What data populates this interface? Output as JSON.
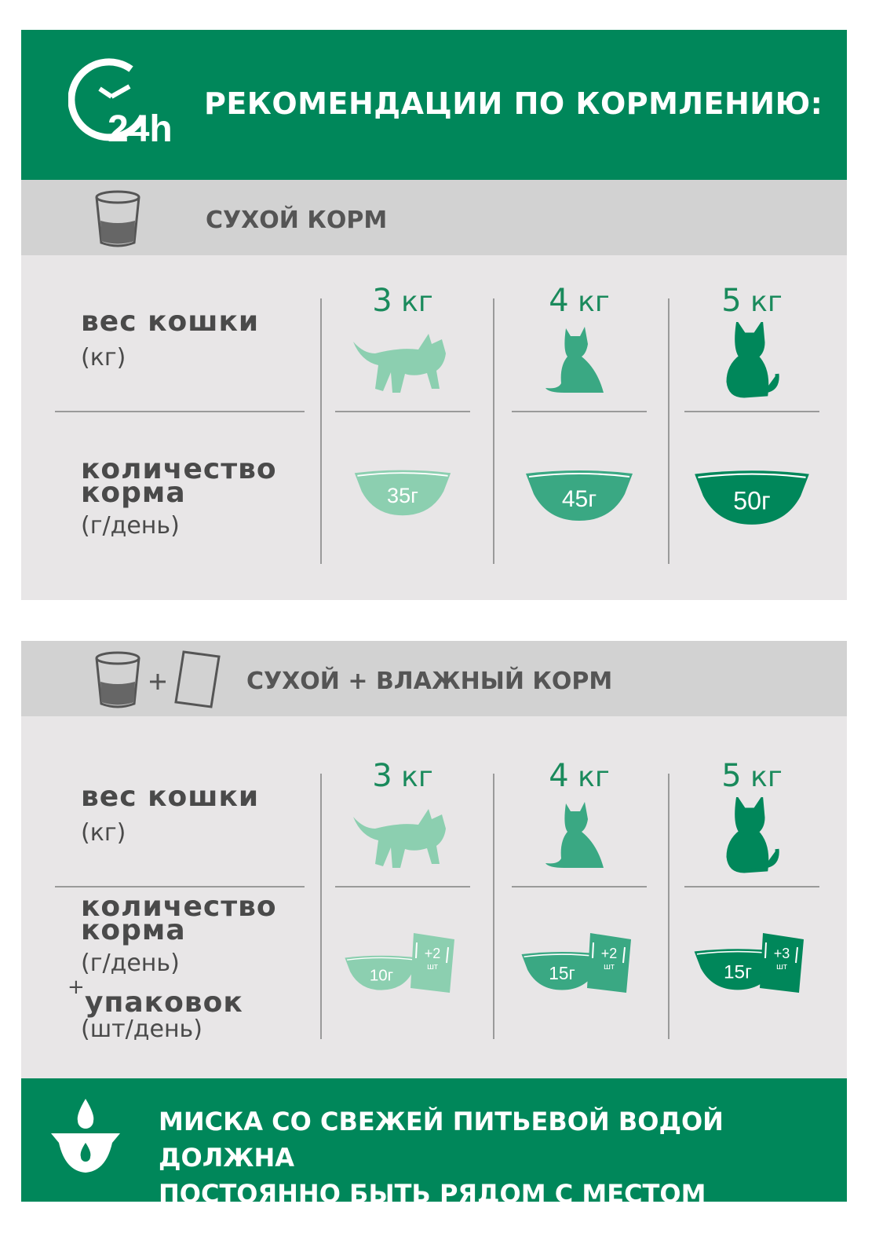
{
  "header": {
    "title": "РЕКОМЕНДАЦИИ ПО КОРМЛЕНИЮ:",
    "icon": "clock-24h-icon",
    "icon_text": "24h"
  },
  "colors": {
    "brand_green": "#00875a",
    "light": "#8ccfb0",
    "mid": "#3aa883",
    "dark": "#00875a",
    "panel": "#e8e6e7",
    "bar": "#d2d2d2"
  },
  "dry": {
    "title": "СУХОЙ КОРМ",
    "weight_label": "вес кошки",
    "weight_unit": "(кг)",
    "amount_label": "количество",
    "amount_label2": "корма",
    "amount_unit": "(г/день)",
    "columns": [
      {
        "weight": "3",
        "unit": "кг",
        "amount": "35г"
      },
      {
        "weight": "4",
        "unit": "кг",
        "amount": "45г"
      },
      {
        "weight": "5",
        "unit": "кг",
        "amount": "50г"
      }
    ]
  },
  "mixed": {
    "title_a": "СУХОЙ",
    "plus": "+",
    "title_b": "ВЛАЖНЫЙ КОРМ",
    "weight_label": "вес кошки",
    "weight_unit": "(кг)",
    "amount_label": "количество",
    "amount_label2": "корма",
    "amount_unit": "(г/день)",
    "pack_plus": "+",
    "pack_label": "упаковок",
    "pack_unit": "(шт/день)",
    "columns": [
      {
        "weight": "3",
        "unit": "кг",
        "amount": "10г",
        "packs": "+2",
        "packs_unit": "шт"
      },
      {
        "weight": "4",
        "unit": "кг",
        "amount": "15г",
        "packs": "+2",
        "packs_unit": "шт"
      },
      {
        "weight": "5",
        "unit": "кг",
        "amount": "15г",
        "packs": "+3",
        "packs_unit": "шт"
      }
    ]
  },
  "footer": {
    "line1": "МИСКА СО СВЕЖЕЙ ПИТЬЕВОЙ ВОДОЙ ДОЛЖНА",
    "line2": "ПОСТОЯННО БЫТЬ РЯДОМ С МЕСТОМ КОРМЛЕНИЯ",
    "icon": "water-bowl-icon"
  }
}
